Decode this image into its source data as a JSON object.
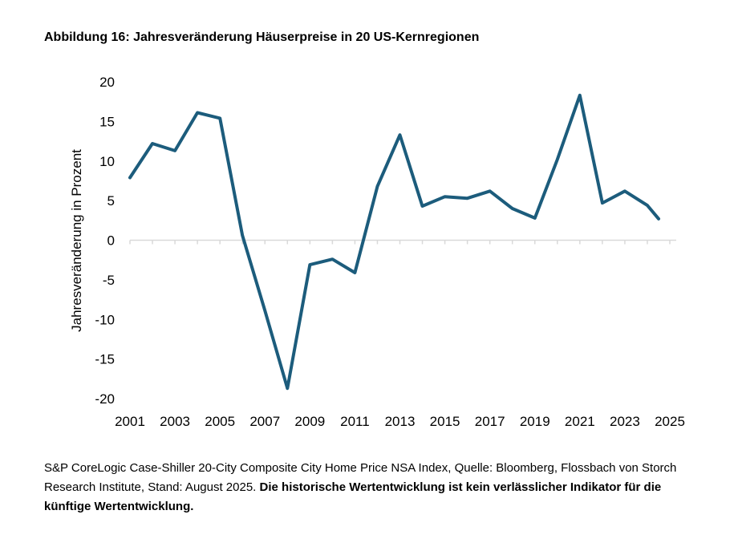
{
  "figure_title": "Abbildung 16: Jahresveränderung Häuserpreise in 20 US-Kernregionen",
  "footnote": {
    "source": "S&P CoreLogic Case-Shiller 20-City Composite City Home Price NSA Index, Quelle: Bloomberg, Flossbach von Storch Research Institute, Stand: August 2025. ",
    "disclaimer": "Die historische Wertentwicklung ist kein verlässlicher Indikator für die künftige Wertentwicklung."
  },
  "colors": {
    "line": "#1c5c7c",
    "axis": "#d9d9d9",
    "text": "#000000"
  },
  "chart_data": {
    "type": "line",
    "title": "",
    "xlabel": "",
    "ylabel": "Jahresveränderung in Prozent",
    "xlim": [
      2001,
      2025
    ],
    "ylim": [
      -20,
      20
    ],
    "xticks": [
      2001,
      2003,
      2005,
      2007,
      2009,
      2011,
      2013,
      2015,
      2017,
      2019,
      2021,
      2023,
      2025
    ],
    "yticks": [
      -20,
      -15,
      -10,
      -5,
      0,
      5,
      10,
      15,
      20
    ],
    "grid": false,
    "legend": "none",
    "series": [
      {
        "x": [
          2001,
          2002,
          2003,
          2004,
          2005,
          2006,
          2007,
          2008,
          2009,
          2010,
          2011,
          2012,
          2013,
          2014,
          2015,
          2016,
          2017,
          2018,
          2019,
          2020,
          2021,
          2022,
          2023,
          2024,
          2024.5
        ],
        "values": [
          7.9,
          12.2,
          11.3,
          16.1,
          15.4,
          0.6,
          -8.9,
          -18.7,
          -3.1,
          -2.4,
          -4.1,
          6.8,
          13.3,
          4.3,
          5.5,
          5.3,
          6.2,
          4.0,
          2.8,
          10.2,
          18.3,
          4.7,
          6.2,
          4.4,
          2.7
        ]
      }
    ]
  }
}
